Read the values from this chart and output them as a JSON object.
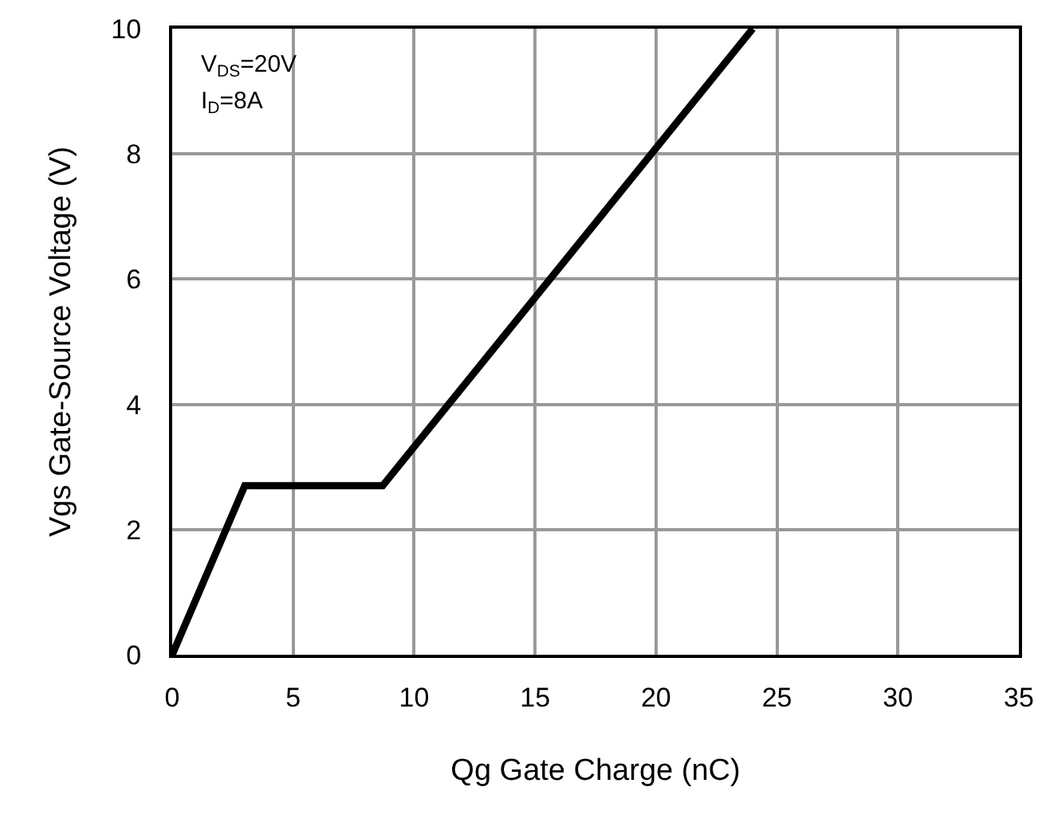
{
  "chart_data": {
    "type": "line",
    "xlabel": "Qg Gate Charge (nC)",
    "ylabel": "Vgs Gate-Source Voltage (V)",
    "x": [
      0,
      3,
      8.7,
      24
    ],
    "series": [
      {
        "color": "#000000",
        "values": [
          0,
          2.7,
          2.7,
          10
        ]
      }
    ],
    "xlim": [
      0,
      35
    ],
    "xticks": [
      0,
      5,
      10,
      15,
      20,
      25,
      30,
      35
    ],
    "ylim": [
      0,
      10
    ],
    "yticks": [
      0,
      2,
      4,
      6,
      8,
      10
    ],
    "grid": true,
    "marker": "none",
    "line_style": "solid",
    "annotations": [
      "V$_{DS}$=20V",
      "I$_{D}$=8A"
    ]
  }
}
